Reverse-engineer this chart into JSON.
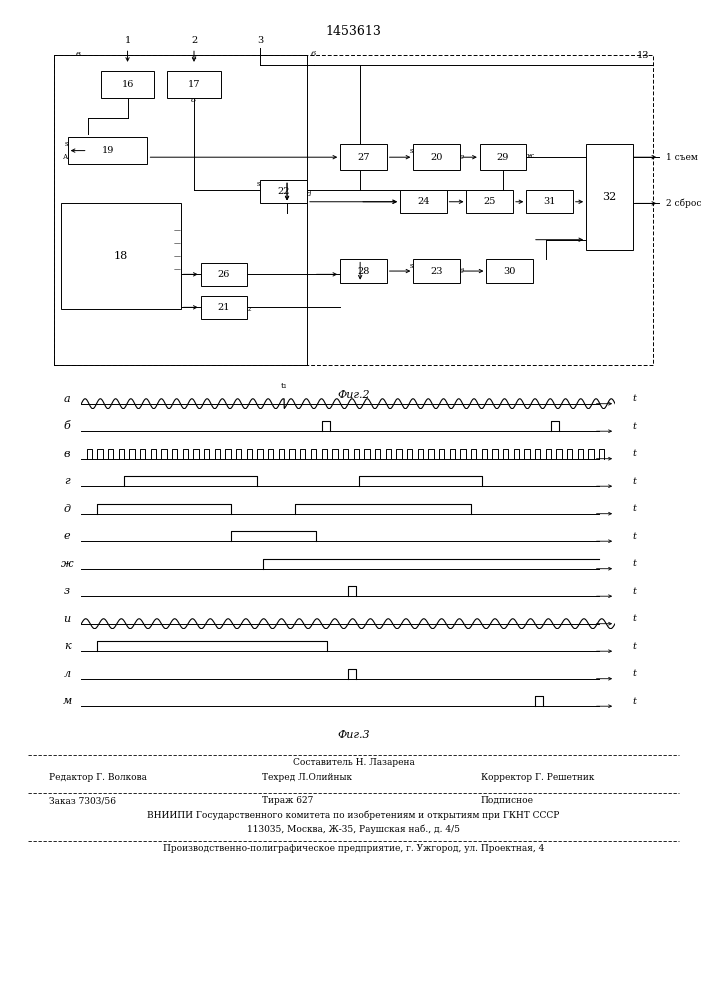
{
  "title": "1453613",
  "fig2_label": "Фиг.2",
  "fig3_label": "Фиг.3",
  "bg_color": "#ffffff",
  "line_color": "#000000",
  "waveform_labels": [
    "a",
    "б",
    "в",
    "г",
    "д",
    "е",
    "ж",
    "з",
    "и",
    "к",
    "л",
    "м"
  ],
  "bottom_texts": {
    "sestavitel": "Составитель Н. Лазарена",
    "redaktor": "Редактор Г. Волкова",
    "tehred": "Техред Л.Олийнык",
    "korrektor": "Корректор Г. Решетник",
    "zakaz": "Заказ 7303/56",
    "tirazh": "Тираж 627",
    "podpisnoe": "Подписное",
    "vniiipi": "ВНИИПИ Государственного комитета по изобретениям и открытиям при ГКНТ СССР",
    "address": "113035, Москва, Ж-35, Раушская наб., д. 4/5",
    "proizv": "Производственно-полиграфическое предприятие, г. Ужгород, ул. Проектная, 4"
  }
}
